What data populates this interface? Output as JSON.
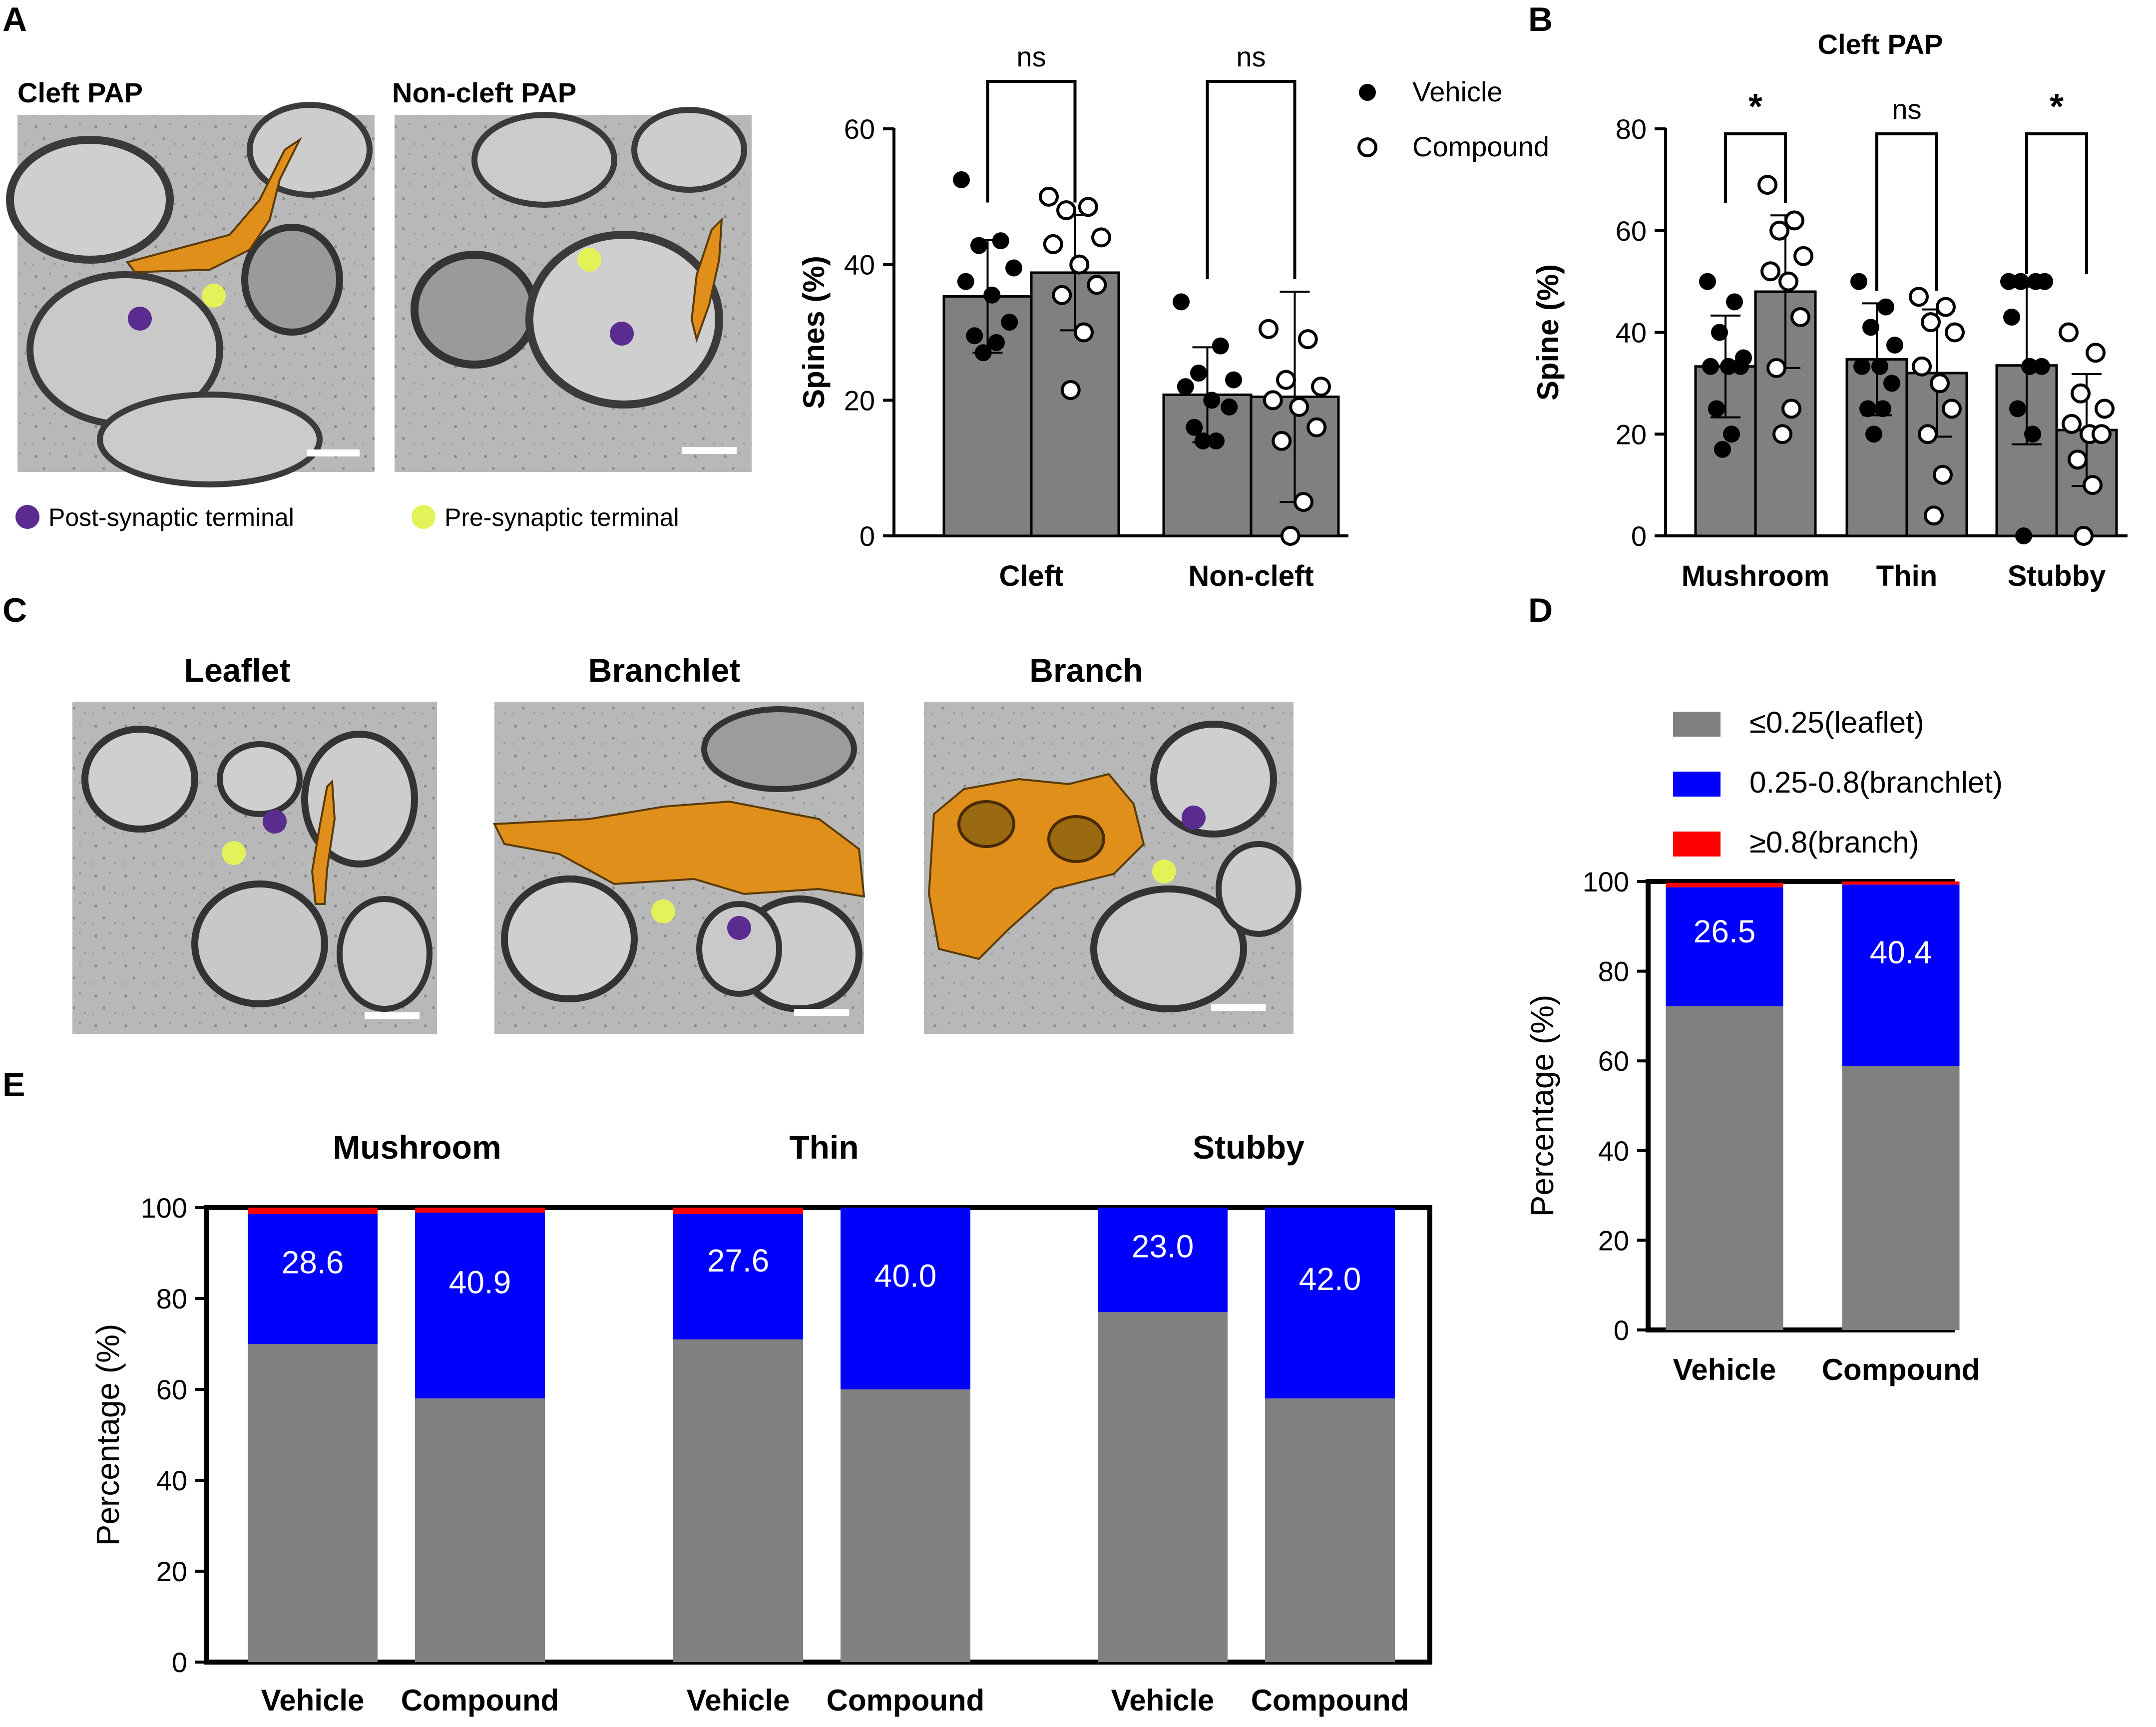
{
  "figure": {
    "panels": {
      "A": "A",
      "B": "B",
      "C": "C",
      "D": "D",
      "E": "E"
    },
    "micrographs": {
      "cleft_pap": "Cleft PAP",
      "non_cleft_pap": "Non-cleft PAP",
      "leaflet": "Leaflet",
      "branchlet": "Branchlet",
      "branch": "Branch"
    },
    "marker_legend": {
      "post": "Post-synaptic terminal",
      "pre": "Pre-synaptic terminal"
    },
    "scatter_legend": {
      "vehicle": "Vehicle",
      "compound": "Compound"
    },
    "colors": {
      "bar_gray": "#808080",
      "blue": "#0000ff",
      "red": "#ff0000",
      "astro_orange": "#e0901a",
      "post_purple": "#5b2c8f",
      "pre_yellow": "#e4f25a",
      "em_gray": "#b4b4b4"
    }
  },
  "chart_data": [
    {
      "id": "A_bar",
      "type": "bar",
      "title": "",
      "ylabel": "Spines (%)",
      "ylim": [
        0,
        60
      ],
      "yticks": [
        "0",
        "20",
        "40",
        "60"
      ],
      "categories": [
        "Cleft",
        "Non-cleft"
      ],
      "series": [
        {
          "name": "Vehicle",
          "marker": "filled",
          "means": [
            35.3,
            20.8
          ],
          "sd": [
            8.3,
            7.0
          ],
          "points": [
            [
              52.5,
              43.5,
              42.8,
              39.5,
              37.5,
              35.5,
              31.5,
              29.5,
              28.5,
              27.0
            ],
            [
              34.5,
              28.0,
              24.0,
              23.0,
              22.0,
              20.0,
              19.0,
              16.0,
              14.0,
              14.0
            ]
          ]
        },
        {
          "name": "Compound",
          "marker": "open",
          "means": [
            38.8,
            20.5
          ],
          "sd": [
            8.5,
            15.5
          ],
          "points": [
            [
              50.0,
              48.5,
              48.0,
              44.0,
              43.0,
              40.0,
              37.0,
              35.5,
              30.0,
              21.5
            ],
            [
              30.5,
              29.0,
              23.0,
              22.0,
              20.0,
              19.0,
              16.0,
              14.0,
              5.0,
              0.0
            ]
          ]
        }
      ],
      "significance": [
        "ns",
        "ns"
      ]
    },
    {
      "id": "B_bar",
      "type": "bar",
      "title": "Cleft PAP",
      "ylabel": "Spine (%)",
      "ylim": [
        0,
        80
      ],
      "yticks": [
        "0",
        "20",
        "40",
        "60",
        "80"
      ],
      "categories": [
        "Mushroom",
        "Thin",
        "Stubby"
      ],
      "series": [
        {
          "name": "Vehicle",
          "marker": "filled",
          "means": [
            33.3,
            34.7,
            33.5
          ],
          "sd": [
            10.0,
            11.0,
            15.5
          ],
          "points": [
            [
              50.0,
              46.0,
              40.0,
              35.0,
              33.3,
              33.3,
              33.3,
              25.0,
              20.0,
              17.0
            ],
            [
              50.0,
              45.0,
              41.0,
              37.5,
              33.3,
              33.3,
              30.0,
              25.0,
              25.0,
              20.0
            ],
            [
              50.0,
              50.0,
              50.0,
              50.0,
              43.0,
              33.3,
              33.3,
              25.0,
              20.0,
              0.0
            ]
          ]
        },
        {
          "name": "Compound",
          "marker": "open",
          "means": [
            48.0,
            32.0,
            20.8
          ],
          "sd": [
            15.0,
            12.5,
            11.0
          ],
          "points": [
            [
              69.0,
              62.0,
              60.0,
              55.0,
              52.0,
              50.0,
              43.0,
              33.0,
              25.0,
              20.0
            ],
            [
              47.0,
              45.0,
              42.0,
              40.0,
              33.3,
              30.0,
              25.0,
              20.0,
              12.0,
              4.0
            ],
            [
              40.0,
              36.0,
              28.0,
              25.0,
              22.0,
              20.0,
              20.0,
              15.0,
              10.0,
              0.0
            ]
          ]
        }
      ],
      "significance": [
        "*",
        "ns",
        "*"
      ]
    },
    {
      "id": "D_stacked",
      "type": "bar",
      "stacked": true,
      "ylabel": "Percentage (%)",
      "ylim": [
        0,
        100
      ],
      "yticks": [
        "0",
        "20",
        "40",
        "60",
        "80",
        "100"
      ],
      "categories": [
        "Vehicle",
        "Compound"
      ],
      "series": [
        {
          "name": "≤0.25(leaflet)",
          "values": [
            72.2,
            58.9
          ]
        },
        {
          "name": "0.25-0.8(branchlet)",
          "values": [
            26.5,
            40.4
          ]
        },
        {
          "name": "≥0.8(branch)",
          "values": [
            1.0,
            0.7
          ]
        }
      ],
      "labels": [
        "26.5",
        "40.4"
      ]
    },
    {
      "id": "E_stacked",
      "type": "bar",
      "stacked": true,
      "ylabel": "Percentage (%)",
      "ylim": [
        0,
        100
      ],
      "yticks": [
        "0",
        "20",
        "40",
        "60",
        "80",
        "100"
      ],
      "groups": [
        "Mushroom",
        "Thin",
        "Stubby"
      ],
      "categories": [
        "Vehicle",
        "Compound",
        "Vehicle",
        "Compound",
        "Vehicle",
        "Compound"
      ],
      "series": [
        {
          "name": "≤0.25(leaflet)",
          "values": [
            70.0,
            58.0,
            71.0,
            60.0,
            77.0,
            58.0
          ]
        },
        {
          "name": "0.25-0.8(branchlet)",
          "values": [
            28.6,
            40.9,
            27.6,
            40.0,
            23.0,
            42.0
          ]
        },
        {
          "name": "≥0.8(branch)",
          "values": [
            1.4,
            1.1,
            1.4,
            0.0,
            0.0,
            0.0
          ]
        }
      ],
      "labels": [
        "28.6",
        "40.9",
        "27.6",
        "40.0",
        "23.0",
        "42.0"
      ]
    }
  ]
}
